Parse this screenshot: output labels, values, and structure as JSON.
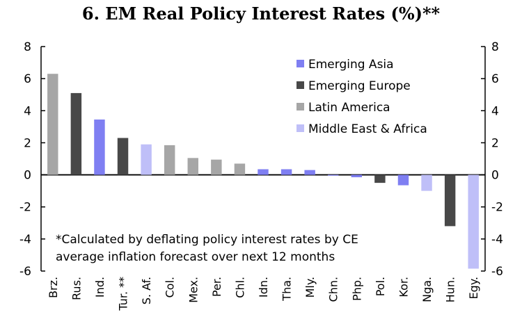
{
  "chart_data": {
    "type": "bar",
    "title": "6. EM Real Policy Interest Rates (%)**",
    "categories": [
      "Brz.",
      "Rus.",
      "Ind.",
      "Tur. **",
      "S. Af.",
      "Col.",
      "Mex.",
      "Per.",
      "Chl.",
      "Idn.",
      "Tha.",
      "Mly.",
      "Chn.",
      "Php.",
      "Pol.",
      "Kor.",
      "Nga.",
      "Hun.",
      "Egy."
    ],
    "values": [
      6.3,
      5.1,
      3.45,
      2.3,
      1.9,
      1.85,
      1.05,
      0.95,
      0.7,
      0.35,
      0.35,
      0.3,
      -0.05,
      -0.15,
      -0.5,
      -0.65,
      -1.0,
      -3.2,
      -5.85
    ],
    "groups": [
      "Latin America",
      "Emerging Europe",
      "Emerging Asia",
      "Emerging Europe",
      "Middle East & Africa",
      "Latin America",
      "Latin America",
      "Latin America",
      "Latin America",
      "Emerging Asia",
      "Emerging Asia",
      "Emerging Asia",
      "Emerging Asia",
      "Emerging Asia",
      "Emerging Europe",
      "Emerging Asia",
      "Middle East & Africa",
      "Emerging Europe",
      "Middle East & Africa"
    ],
    "legend": [
      {
        "name": "Emerging Asia",
        "color": "#7f7ff2"
      },
      {
        "name": "Emerging Europe",
        "color": "#484848"
      },
      {
        "name": "Latin America",
        "color": "#a6a6a6"
      },
      {
        "name": "Middle East & Africa",
        "color": "#bfbff8"
      }
    ],
    "legend_position": "top-right",
    "ylim": [
      -6,
      8
    ],
    "yticks": [
      8,
      6,
      4,
      2,
      0,
      -2,
      -4,
      -6
    ],
    "yticks_right": true,
    "grid": false,
    "xlabel": "",
    "ylabel": "",
    "annotation": [
      "*Calculated by deflating policy interest rates by CE",
      "average inflation forecast over next 12 months"
    ]
  }
}
